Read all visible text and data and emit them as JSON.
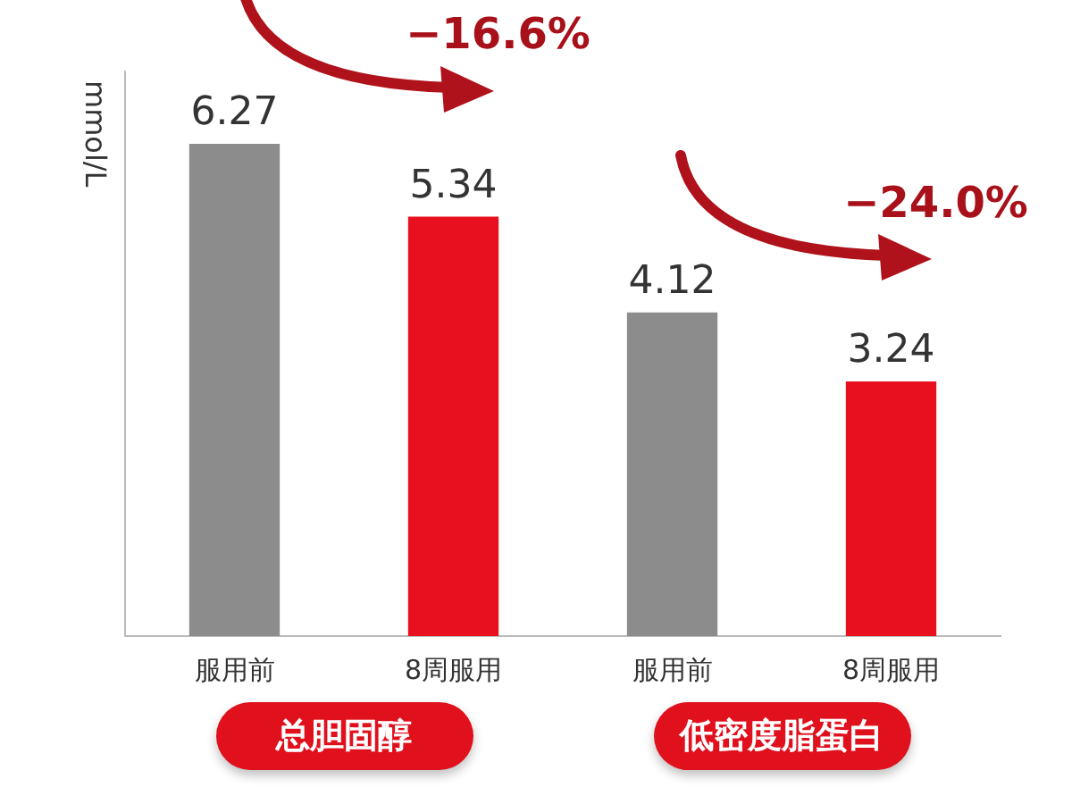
{
  "chart_data": {
    "type": "bar",
    "ylabel": "mmol/L",
    "categories": [
      "服用前",
      "8周服用",
      "服用前",
      "8周服用"
    ],
    "values": [
      6.27,
      5.34,
      4.12,
      3.24
    ],
    "colors": [
      "#8c8c8c",
      "#e8101e",
      "#8c8c8c",
      "#e8101e"
    ],
    "ylim": [
      0,
      7.2
    ],
    "data_labels": true,
    "tick_labels": "x",
    "grid": false,
    "legend": false,
    "annotations": [
      "−16.6%",
      "−24.0%",
      "总胆固醇",
      "低密度脂蛋白"
    ]
  }
}
